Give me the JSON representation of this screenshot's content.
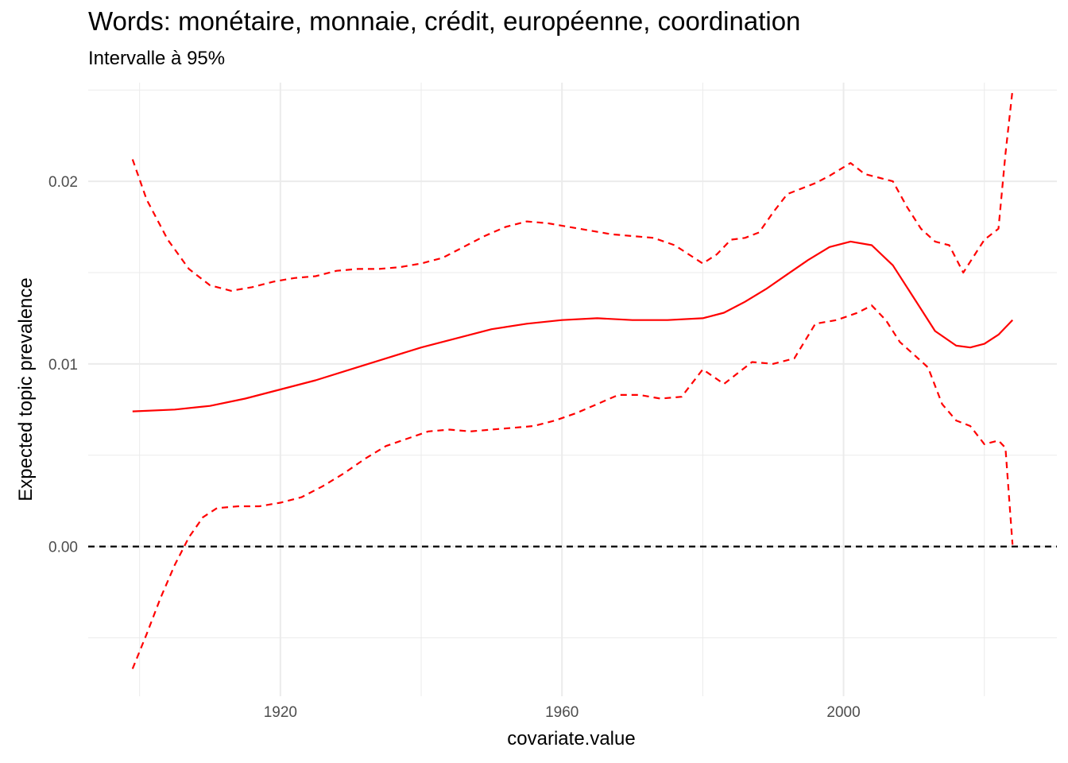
{
  "chart_data": {
    "type": "line",
    "title": "Words: monétaire, monnaie, crédit, européenne, coordination",
    "subtitle": "Intervalle à 95%",
    "xlabel": "covariate.value",
    "ylabel": "Expected topic prevalence",
    "xlim": [
      1892.7,
      2030.3
    ],
    "ylim": [
      -0.0082,
      0.0254
    ],
    "x_ticks": [
      1920,
      1960,
      2000
    ],
    "y_ticks": [
      0.0,
      0.01,
      0.02
    ],
    "x_tick_labels": [
      "1920",
      "1960",
      "2000"
    ],
    "y_tick_labels": [
      "0.00",
      "0.01",
      "0.02"
    ],
    "grid": true,
    "legend": "none",
    "reference_line": {
      "y": 0.0,
      "style": "dashed",
      "color": "#000000"
    },
    "colors": {
      "series": "#ff0000",
      "grid": "#ebebeb",
      "reference": "#000000"
    },
    "series": [
      {
        "role": "estimate",
        "line_style": "solid",
        "x": [
          1899,
          1905,
          1910,
          1915,
          1920,
          1925,
          1930,
          1935,
          1940,
          1945,
          1950,
          1955,
          1960,
          1965,
          1970,
          1975,
          1980,
          1983,
          1986,
          1989,
          1992,
          1995,
          1998,
          2001,
          2004,
          2007,
          2010,
          2013,
          2016,
          2018,
          2020,
          2022,
          2024
        ],
        "y": [
          0.0074,
          0.0075,
          0.0077,
          0.0081,
          0.0086,
          0.0091,
          0.0097,
          0.0103,
          0.0109,
          0.0114,
          0.0119,
          0.0122,
          0.0124,
          0.0125,
          0.0124,
          0.0124,
          0.0125,
          0.0128,
          0.0134,
          0.0141,
          0.0149,
          0.0157,
          0.0164,
          0.0167,
          0.0165,
          0.0154,
          0.0136,
          0.0118,
          0.011,
          0.0109,
          0.0111,
          0.0116,
          0.0124
        ]
      },
      {
        "role": "upper_bound",
        "line_style": "dashed",
        "x": [
          1899,
          1901,
          1904,
          1907,
          1910,
          1913,
          1916,
          1919,
          1922,
          1925,
          1928,
          1931,
          1934,
          1937,
          1940,
          1943,
          1946,
          1949,
          1952,
          1955,
          1958,
          1961,
          1964,
          1967,
          1970,
          1973,
          1976,
          1980,
          1982,
          1984,
          1986,
          1988,
          1990,
          1992,
          1994,
          1996,
          1998,
          2001,
          2003,
          2005,
          2007,
          2009,
          2011,
          2013,
          2015,
          2017,
          2019,
          2020,
          2022,
          2023,
          2024
        ],
        "y": [
          0.0212,
          0.019,
          0.0168,
          0.0152,
          0.0143,
          0.014,
          0.0142,
          0.0145,
          0.0147,
          0.0148,
          0.0151,
          0.0152,
          0.0152,
          0.0153,
          0.0155,
          0.0158,
          0.0164,
          0.017,
          0.0175,
          0.0178,
          0.0177,
          0.0175,
          0.0173,
          0.0171,
          0.017,
          0.0169,
          0.0165,
          0.0155,
          0.016,
          0.0168,
          0.0169,
          0.0172,
          0.0183,
          0.0193,
          0.0196,
          0.0199,
          0.0203,
          0.021,
          0.0204,
          0.0202,
          0.02,
          0.0186,
          0.0174,
          0.0167,
          0.0165,
          0.015,
          0.0162,
          0.0168,
          0.0174,
          0.0215,
          0.025
        ]
      },
      {
        "role": "lower_bound",
        "line_style": "dashed",
        "x": [
          1899,
          1901,
          1903,
          1905,
          1907,
          1909,
          1911,
          1914,
          1917,
          1920,
          1923,
          1926,
          1929,
          1932,
          1935,
          1938,
          1941,
          1944,
          1947,
          1950,
          1953,
          1956,
          1959,
          1962,
          1965,
          1968,
          1971,
          1974,
          1977,
          1980,
          1983,
          1985,
          1987,
          1990,
          1993,
          1996,
          1999,
          2002,
          2004,
          2006,
          2008,
          2010,
          2012,
          2014,
          2016,
          2018,
          2020,
          2022,
          2023,
          2024
        ],
        "y": [
          -0.0067,
          -0.0048,
          -0.0028,
          -0.001,
          0.0005,
          0.0016,
          0.0021,
          0.0022,
          0.0022,
          0.0024,
          0.0027,
          0.0033,
          0.004,
          0.0048,
          0.0055,
          0.0059,
          0.0063,
          0.0064,
          0.0063,
          0.0064,
          0.0065,
          0.0066,
          0.0069,
          0.0073,
          0.0078,
          0.0083,
          0.0083,
          0.0081,
          0.0082,
          0.0097,
          0.0089,
          0.0095,
          0.0101,
          0.01,
          0.0103,
          0.0122,
          0.0124,
          0.0128,
          0.0132,
          0.0124,
          0.0112,
          0.0105,
          0.0098,
          0.0078,
          0.0069,
          0.0066,
          0.0056,
          0.0058,
          0.0054,
          0.0001
        ]
      }
    ]
  }
}
